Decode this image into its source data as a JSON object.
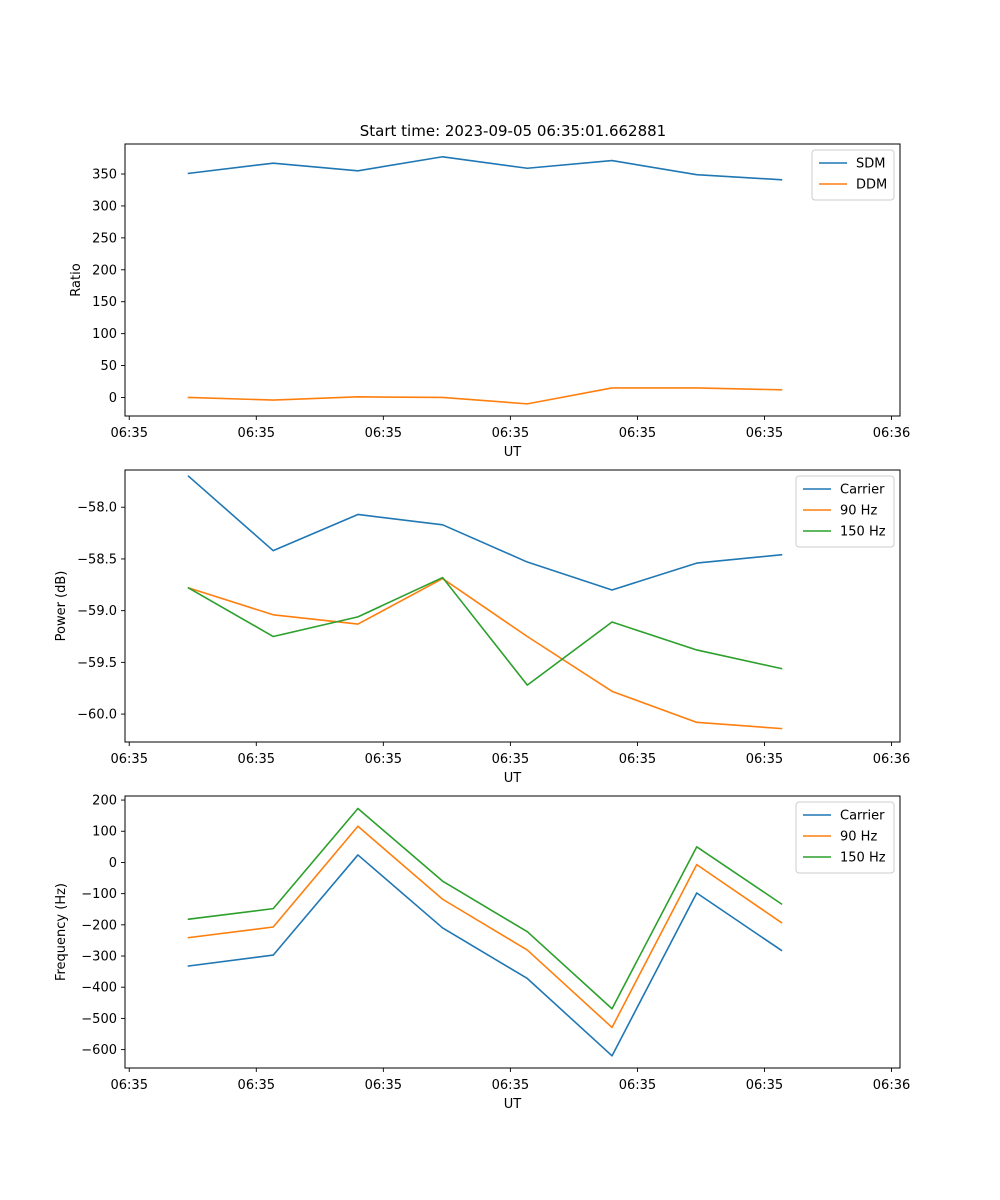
{
  "figure": {
    "title": "Start time: 2023-09-05 06:35:01.662881"
  },
  "chart_data": [
    {
      "type": "line",
      "xlabel": "UT",
      "ylabel": "Ratio",
      "x": [
        0,
        1,
        2,
        3,
        4,
        5,
        6,
        7
      ],
      "xlim": [
        -0.75,
        8.4
      ],
      "xticks": [
        {
          "pos": -0.7,
          "label": "06:35"
        },
        {
          "pos": 0.8,
          "label": "06:35"
        },
        {
          "pos": 2.3,
          "label": "06:35"
        },
        {
          "pos": 3.8,
          "label": "06:35"
        },
        {
          "pos": 5.3,
          "label": "06:35"
        },
        {
          "pos": 6.8,
          "label": "06:35"
        },
        {
          "pos": 8.3,
          "label": "06:36"
        }
      ],
      "ylim": [
        -29,
        397
      ],
      "yticks": [
        0,
        50,
        100,
        150,
        200,
        250,
        300,
        350
      ],
      "ytick_labels": [
        "0",
        "50",
        "100",
        "150",
        "200",
        "250",
        "300",
        "350"
      ],
      "legend": "top-right",
      "series": [
        {
          "name": "SDM",
          "color": "#1f77b4",
          "values": [
            351,
            367,
            355,
            377,
            359,
            371,
            349,
            341
          ]
        },
        {
          "name": "DDM",
          "color": "#ff7f0e",
          "values": [
            0,
            -4,
            1,
            0,
            -10,
            15,
            15,
            12
          ]
        }
      ]
    },
    {
      "type": "line",
      "xlabel": "UT",
      "ylabel": "Power (dB)",
      "x": [
        0,
        1,
        2,
        3,
        4,
        5,
        6,
        7
      ],
      "xlim": [
        -0.75,
        8.4
      ],
      "xticks": [
        {
          "pos": -0.7,
          "label": "06:35"
        },
        {
          "pos": 0.8,
          "label": "06:35"
        },
        {
          "pos": 2.3,
          "label": "06:35"
        },
        {
          "pos": 3.8,
          "label": "06:35"
        },
        {
          "pos": 5.3,
          "label": "06:35"
        },
        {
          "pos": 6.8,
          "label": "06:35"
        },
        {
          "pos": 8.3,
          "label": "06:36"
        }
      ],
      "ylim": [
        -60.27,
        -57.64
      ],
      "yticks": [
        -60.0,
        -59.5,
        -59.0,
        -58.5,
        -58.0
      ],
      "ytick_labels": [
        "−60.0",
        "−59.5",
        "−59.0",
        "−58.5",
        "−58.0"
      ],
      "legend": "top-right",
      "series": [
        {
          "name": "Carrier",
          "color": "#1f77b4",
          "values": [
            -57.7,
            -58.42,
            -58.07,
            -58.17,
            -58.53,
            -58.8,
            -58.54,
            -58.46
          ]
        },
        {
          "name": "90 Hz",
          "color": "#ff7f0e",
          "values": [
            -58.78,
            -59.04,
            -59.13,
            -58.69,
            -59.25,
            -59.78,
            -60.08,
            -60.14
          ]
        },
        {
          "name": "150 Hz",
          "color": "#2ca02c",
          "values": [
            -58.78,
            -59.25,
            -59.06,
            -58.68,
            -59.72,
            -59.11,
            -59.38,
            -59.56
          ]
        }
      ]
    },
    {
      "type": "line",
      "xlabel": "UT",
      "ylabel": "Frequency (Hz)",
      "x": [
        0,
        1,
        2,
        3,
        4,
        5,
        6,
        7
      ],
      "xlim": [
        -0.75,
        8.4
      ],
      "xticks": [
        {
          "pos": -0.7,
          "label": "06:35"
        },
        {
          "pos": 0.8,
          "label": "06:35"
        },
        {
          "pos": 2.3,
          "label": "06:35"
        },
        {
          "pos": 3.8,
          "label": "06:35"
        },
        {
          "pos": 5.3,
          "label": "06:35"
        },
        {
          "pos": 6.8,
          "label": "06:35"
        },
        {
          "pos": 8.3,
          "label": "06:36"
        }
      ],
      "ylim": [
        -659,
        213
      ],
      "yticks": [
        -600,
        -500,
        -400,
        -300,
        -200,
        -100,
        0,
        100,
        200
      ],
      "ytick_labels": [
        "−600",
        "−500",
        "−400",
        "−300",
        "−200",
        "−100",
        "0",
        "100",
        "200"
      ],
      "legend": "top-right",
      "series": [
        {
          "name": "Carrier",
          "color": "#1f77b4",
          "values": [
            -332,
            -297,
            24,
            -210,
            -372,
            -620,
            -98,
            -282
          ]
        },
        {
          "name": "90 Hz",
          "color": "#ff7f0e",
          "values": [
            -241,
            -207,
            116,
            -118,
            -281,
            -529,
            -7,
            -193
          ]
        },
        {
          "name": "150 Hz",
          "color": "#2ca02c",
          "values": [
            -182,
            -148,
            173,
            -60,
            -222,
            -469,
            50,
            -133
          ]
        }
      ]
    }
  ]
}
